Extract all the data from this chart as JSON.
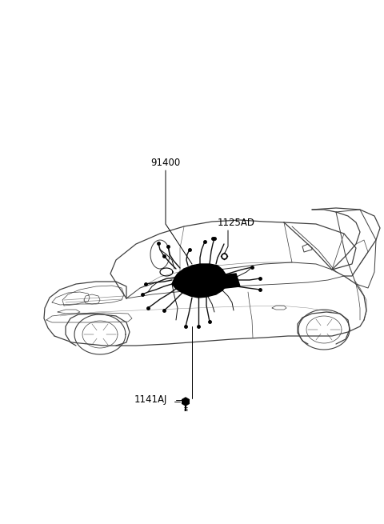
{
  "background_color": "#ffffff",
  "line_color": "#404040",
  "line_color_dark": "#000000",
  "lw_main": 0.9,
  "lw_thin": 0.5,
  "lw_wiring": 1.1,
  "figsize": [
    4.8,
    6.55
  ],
  "dpi": 100,
  "label_91400": "91400",
  "label_1125AD": "1125AD",
  "label_1141AJ": "1141AJ",
  "fontsize": 8.5
}
